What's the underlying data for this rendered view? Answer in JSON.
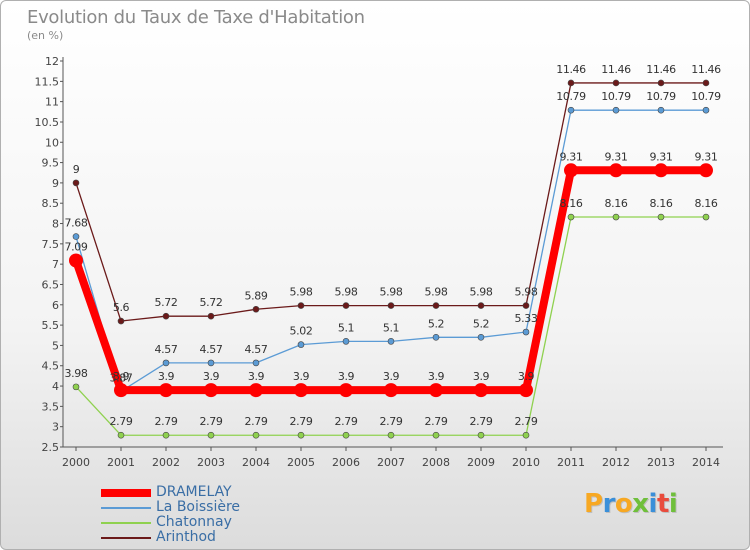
{
  "chart_data": {
    "type": "line",
    "title": "Evolution du Taux de Taxe d'Habitation",
    "unit_label": "(en %)",
    "x": [
      "2000",
      "2001",
      "2002",
      "2003",
      "2004",
      "2005",
      "2006",
      "2007",
      "2008",
      "2009",
      "2010",
      "2011",
      "2012",
      "2013",
      "2014"
    ],
    "ylim": [
      2.5,
      12
    ],
    "y_ticks": [
      "2.5",
      "3",
      "3.5",
      "4",
      "4.5",
      "5",
      "5.5",
      "6",
      "6.5",
      "7",
      "7.5",
      "8",
      "8.5",
      "9",
      "9.5",
      "10",
      "10.5",
      "11",
      "11.5",
      "12"
    ],
    "grid": false,
    "legend_position": "bottom-left",
    "series": [
      {
        "name": "DRAMELAY",
        "color": "#ff0000",
        "values": [
          7.09,
          3.9,
          3.9,
          3.9,
          3.9,
          3.9,
          3.9,
          3.9,
          3.9,
          3.9,
          3.9,
          9.31,
          9.31,
          9.31,
          9.31
        ],
        "labels": [
          "7.09",
          "3.9",
          "3.9",
          "3.9",
          "3.9",
          "3.9",
          "3.9",
          "3.9",
          "3.9",
          "3.9",
          "3.9",
          "9.31",
          "9.31",
          "9.31",
          "9.31"
        ]
      },
      {
        "name": "La Boissière",
        "color": "#5b9bd5",
        "values": [
          7.68,
          3.87,
          4.57,
          4.57,
          4.57,
          5.02,
          5.1,
          5.1,
          5.2,
          5.2,
          5.33,
          10.79,
          10.79,
          10.79,
          10.79
        ],
        "labels": [
          "7.68",
          "3.87",
          "4.57",
          "4.57",
          "4.57",
          "5.02",
          "5.1",
          "5.1",
          "5.2",
          "5.2",
          "5.33",
          "10.79",
          "10.79",
          "10.79",
          "10.79"
        ]
      },
      {
        "name": "Chatonnay",
        "color": "#8fd14f",
        "values": [
          3.98,
          2.79,
          2.79,
          2.79,
          2.79,
          2.79,
          2.79,
          2.79,
          2.79,
          2.79,
          2.79,
          8.16,
          8.16,
          8.16,
          8.16
        ],
        "labels": [
          "3.98",
          "2.79",
          "2.79",
          "2.79",
          "2.79",
          "2.79",
          "2.79",
          "2.79",
          "2.79",
          "2.79",
          "2.79",
          "8.16",
          "8.16",
          "8.16",
          "8.16"
        ]
      },
      {
        "name": "Arinthod",
        "color": "#6b1a1a",
        "values": [
          9,
          5.6,
          5.72,
          5.72,
          5.89,
          5.98,
          5.98,
          5.98,
          5.98,
          5.98,
          5.98,
          11.46,
          11.46,
          11.46,
          11.46
        ],
        "labels": [
          "9",
          "5.6",
          "5.72",
          "5.72",
          "5.89",
          "5.98",
          "5.98",
          "5.98",
          "5.98",
          "5.98",
          "5.98",
          "11.46",
          "11.46",
          "11.46",
          "11.46"
        ]
      }
    ]
  },
  "branding": {
    "logo_text": "Proxiti",
    "logo_colors": [
      "#f7a823",
      "#3a8fd9",
      "#f7a823",
      "#6fbf3b",
      "#3a8fd9",
      "#e94b3c",
      "#6fbf3b"
    ]
  }
}
